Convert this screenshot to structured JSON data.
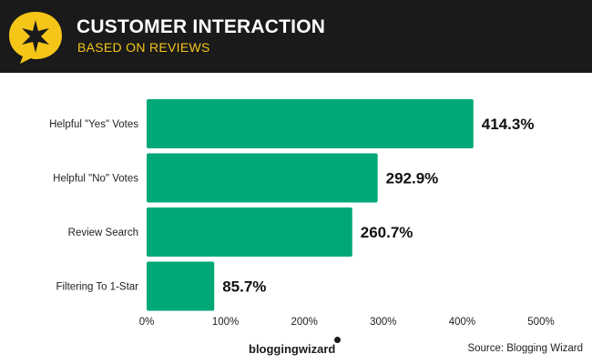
{
  "header": {
    "title": "CUSTOMER INTERACTION",
    "subtitle": "BASED ON REVIEWS",
    "logo_icon": "star-speech-bubble-icon"
  },
  "colors": {
    "header_bg": "#1a1a1a",
    "accent_yellow": "#f5c518",
    "bar": "#00a878"
  },
  "chart_data": {
    "type": "bar",
    "orientation": "horizontal",
    "categories": [
      "Helpful \"Yes\" Votes",
      "Helpful \"No\" Votes",
      "Review Search",
      "Filtering To 1-Star"
    ],
    "values": [
      414.3,
      292.9,
      260.7,
      85.7
    ],
    "value_labels": [
      "414.3%",
      "292.9%",
      "260.7%",
      "85.7%"
    ],
    "xlim": [
      0,
      500
    ],
    "xticks": [
      0,
      100,
      200,
      300,
      400,
      500
    ],
    "xtick_labels": [
      "0%",
      "100%",
      "200%",
      "300%",
      "400%",
      "500%"
    ],
    "grid": false,
    "legend": "none"
  },
  "footer": {
    "brand": "bloggingwizard",
    "source": "Source: Blogging Wizard"
  }
}
